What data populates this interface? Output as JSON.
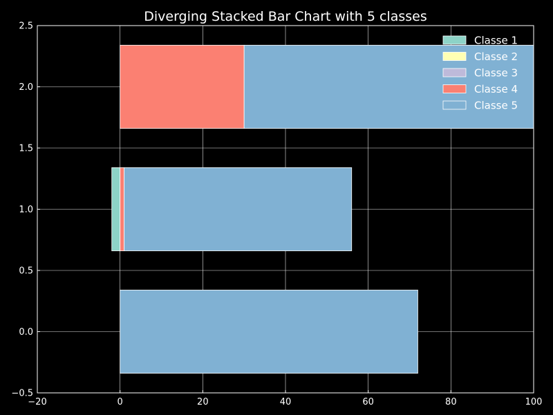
{
  "chart_data": {
    "type": "bar",
    "orientation": "horizontal",
    "stacking": "diverging",
    "title": "Diverging Stacked Bar Chart with 5 classes",
    "xlabel": "",
    "ylabel": "",
    "xlim": [
      -20,
      100
    ],
    "ylim": [
      -0.5,
      2.5
    ],
    "x_ticks": [
      "−20",
      "0",
      "20",
      "40",
      "60",
      "80",
      "100"
    ],
    "y_ticks": [
      "−0.5",
      "0.0",
      "0.5",
      "1.0",
      "1.5",
      "2.0",
      "2.5"
    ],
    "grid": true,
    "legend_position": "top-right",
    "categories": [
      0,
      1,
      2
    ],
    "series": [
      {
        "name": "Classe 1",
        "color": "#8dd3c7",
        "values": [
          0,
          -2,
          0
        ]
      },
      {
        "name": "Classe 2",
        "color": "#ffffb3",
        "values": [
          0,
          0,
          0
        ]
      },
      {
        "name": "Classe 3",
        "color": "#bebada",
        "values": [
          0,
          0,
          0
        ]
      },
      {
        "name": "Classe 4",
        "color": "#fb8072",
        "values": [
          0,
          1,
          30
        ]
      },
      {
        "name": "Classe 5",
        "color": "#80b1d3",
        "values": [
          72,
          55,
          70
        ]
      }
    ]
  }
}
